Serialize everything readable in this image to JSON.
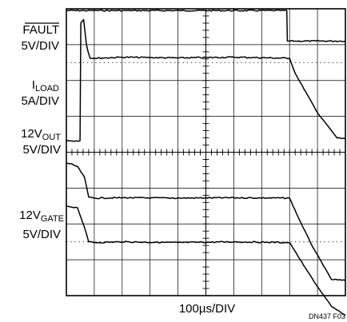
{
  "chart_data": {
    "type": "line",
    "title": "",
    "xlabel": "100µs/DIV",
    "figure_code": "DN437 F03",
    "x_divisions": 10,
    "y_divisions": 8,
    "grid": true,
    "x_unit": "µs",
    "x_per_div": 100,
    "channel_labels": [
      {
        "name": "FAULT",
        "overline": true,
        "sub": "",
        "scale": "5V/DIV"
      },
      {
        "name": "I",
        "sub": "LOAD",
        "scale": "5A/DIV"
      },
      {
        "name": "12V",
        "sub": "OUT",
        "scale": "5V/DIV"
      },
      {
        "name": "12V",
        "sub": "GATE",
        "scale": "5V/DIV"
      }
    ],
    "series": [
      {
        "name": "FAULT",
        "x": [
          0,
          790,
          792,
          1000
        ],
        "y": [
          0.05,
          0.05,
          0.9,
          0.9
        ]
      },
      {
        "name": "ILOAD",
        "x": [
          0,
          49,
          52,
          62,
          72,
          78,
          85,
          100,
          200,
          400,
          600,
          800,
          820,
          900,
          970,
          1000
        ],
        "y": [
          3.68,
          3.68,
          0.4,
          0.3,
          1.0,
          1.2,
          1.38,
          1.38,
          1.35,
          1.37,
          1.35,
          1.38,
          1.8,
          2.9,
          3.6,
          3.62
        ]
      },
      {
        "name": "12VOUT",
        "x": [
          0,
          10,
          40,
          65,
          80,
          100,
          200,
          400,
          600,
          800,
          830,
          880,
          950,
          1000
        ],
        "y": [
          4.3,
          4.32,
          4.4,
          4.7,
          5.25,
          5.28,
          5.27,
          5.28,
          5.27,
          5.28,
          5.8,
          6.6,
          7.55,
          7.58
        ]
      },
      {
        "name": "12VGATE",
        "x": [
          0,
          40,
          65,
          80,
          100,
          200,
          400,
          600,
          800,
          850,
          900,
          950,
          1000
        ],
        "y": [
          5.5,
          5.55,
          6.1,
          6.5,
          6.52,
          6.5,
          6.52,
          6.5,
          6.52,
          7.15,
          7.75,
          8.3,
          8.55
        ]
      }
    ]
  }
}
